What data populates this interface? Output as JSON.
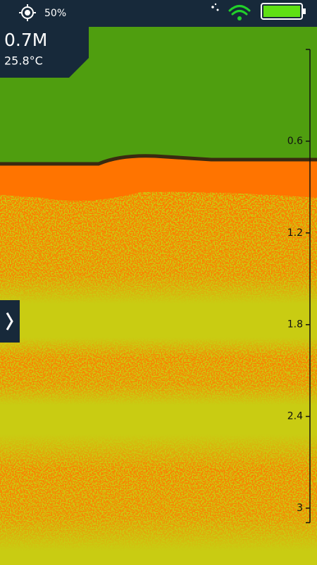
{
  "status": {
    "sensor_level": "50%"
  },
  "readings": {
    "depth": "0.7M",
    "temperature": "25.8°C"
  },
  "depth_scale": {
    "ticks": [
      0.6,
      1.2,
      1.8,
      2.4,
      3
    ]
  }
}
